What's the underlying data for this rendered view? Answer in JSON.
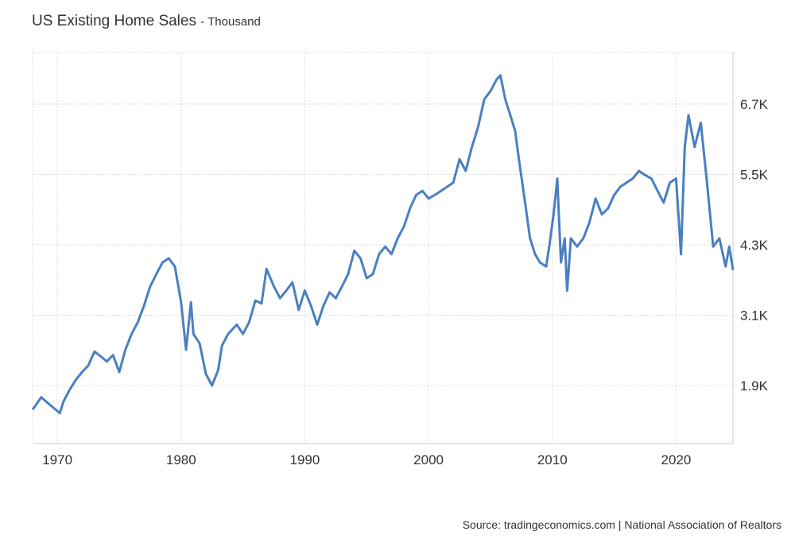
{
  "title": "US Existing Home Sales",
  "subtitle": "- Thousand",
  "source": "Source: tradingeconomics.com | National Association of Realtors",
  "colors": {
    "line": "#4a7fc1",
    "grid": "#d9d9d9"
  },
  "chart_data": {
    "type": "line",
    "title": "US Existing Home Sales",
    "unit": "Thousand",
    "xlim": [
      1968.0,
      2024.6
    ],
    "ylim": [
      910,
      7580
    ],
    "grid": true,
    "y_axis_side": "right",
    "x_ticks": [
      1970,
      1980,
      1990,
      2000,
      2010,
      2020
    ],
    "x_tick_labels": [
      "1970",
      "1980",
      "1990",
      "2000",
      "2010",
      "2020"
    ],
    "y_ticks": [
      1900,
      3100,
      4300,
      5500,
      6700
    ],
    "y_tick_labels": [
      "1.9K",
      "3.1K",
      "4.3K",
      "5.5K",
      "6.7K"
    ],
    "series": [
      {
        "x": [
          1968.0,
          1968.7,
          1969.3,
          1970.2,
          1970.5,
          1971.0,
          1971.5,
          1972.0,
          1972.5,
          1973.0,
          1973.5,
          1974.0,
          1974.5,
          1975.0,
          1975.5,
          1976.0,
          1976.5,
          1977.0,
          1977.5,
          1978.0,
          1978.5,
          1979.0,
          1979.5,
          1980.0,
          1980.4,
          1980.8,
          1981.0,
          1981.5,
          1982.0,
          1982.5,
          1983.0,
          1983.3,
          1983.8,
          1984.5,
          1985.0,
          1985.5,
          1986.0,
          1986.5,
          1986.9,
          1987.5,
          1988.0,
          1988.5,
          1989.0,
          1989.5,
          1990.0,
          1990.5,
          1991.0,
          1991.5,
          1992.0,
          1992.5,
          1993.0,
          1993.5,
          1994.0,
          1994.5,
          1995.0,
          1995.5,
          1996.0,
          1996.5,
          1997.0,
          1997.5,
          1998.0,
          1998.5,
          1999.0,
          1999.5,
          2000.0,
          2000.5,
          2001.0,
          2001.5,
          2002.0,
          2002.5,
          2003.0,
          2003.5,
          2004.0,
          2004.5,
          2005.0,
          2005.5,
          2005.8,
          2006.2,
          2006.5,
          2007.0,
          2007.3,
          2007.8,
          2008.2,
          2008.6,
          2009.0,
          2009.5,
          2009.8,
          2010.1,
          2010.4,
          2010.7,
          2011.0,
          2011.2,
          2011.5,
          2012.0,
          2012.5,
          2013.0,
          2013.5,
          2014.0,
          2014.5,
          2015.0,
          2015.5,
          2016.0,
          2016.5,
          2017.0,
          2017.5,
          2018.0,
          2018.5,
          2019.0,
          2019.5,
          2020.0,
          2020.4,
          2020.7,
          2021.0,
          2021.5,
          2022.0,
          2022.5,
          2023.0,
          2023.5,
          2024.0,
          2024.3,
          2024.6
        ],
        "y": [
          1490,
          1700,
          1590,
          1430,
          1630,
          1830,
          2000,
          2130,
          2240,
          2480,
          2400,
          2310,
          2420,
          2130,
          2510,
          2780,
          2980,
          3260,
          3590,
          3800,
          4000,
          4070,
          3930,
          3320,
          2510,
          3320,
          2780,
          2620,
          2100,
          1900,
          2170,
          2580,
          2780,
          2940,
          2780,
          2980,
          3350,
          3300,
          3890,
          3590,
          3390,
          3520,
          3660,
          3190,
          3520,
          3260,
          2940,
          3260,
          3490,
          3390,
          3590,
          3800,
          4200,
          4070,
          3730,
          3800,
          4140,
          4270,
          4140,
          4410,
          4610,
          4920,
          5150,
          5220,
          5090,
          5150,
          5220,
          5290,
          5360,
          5760,
          5560,
          5970,
          6310,
          6780,
          6920,
          7120,
          7190,
          6780,
          6580,
          6240,
          5760,
          5020,
          4410,
          4140,
          4000,
          3930,
          4340,
          4820,
          5430,
          4000,
          4410,
          3520,
          4410,
          4270,
          4410,
          4680,
          5090,
          4820,
          4920,
          5150,
          5290,
          5360,
          5430,
          5560,
          5490,
          5430,
          5220,
          5020,
          5360,
          5430,
          4140,
          5970,
          6510,
          5970,
          6380,
          5360,
          4270,
          4410,
          3930,
          4270,
          3870
        ]
      }
    ]
  }
}
